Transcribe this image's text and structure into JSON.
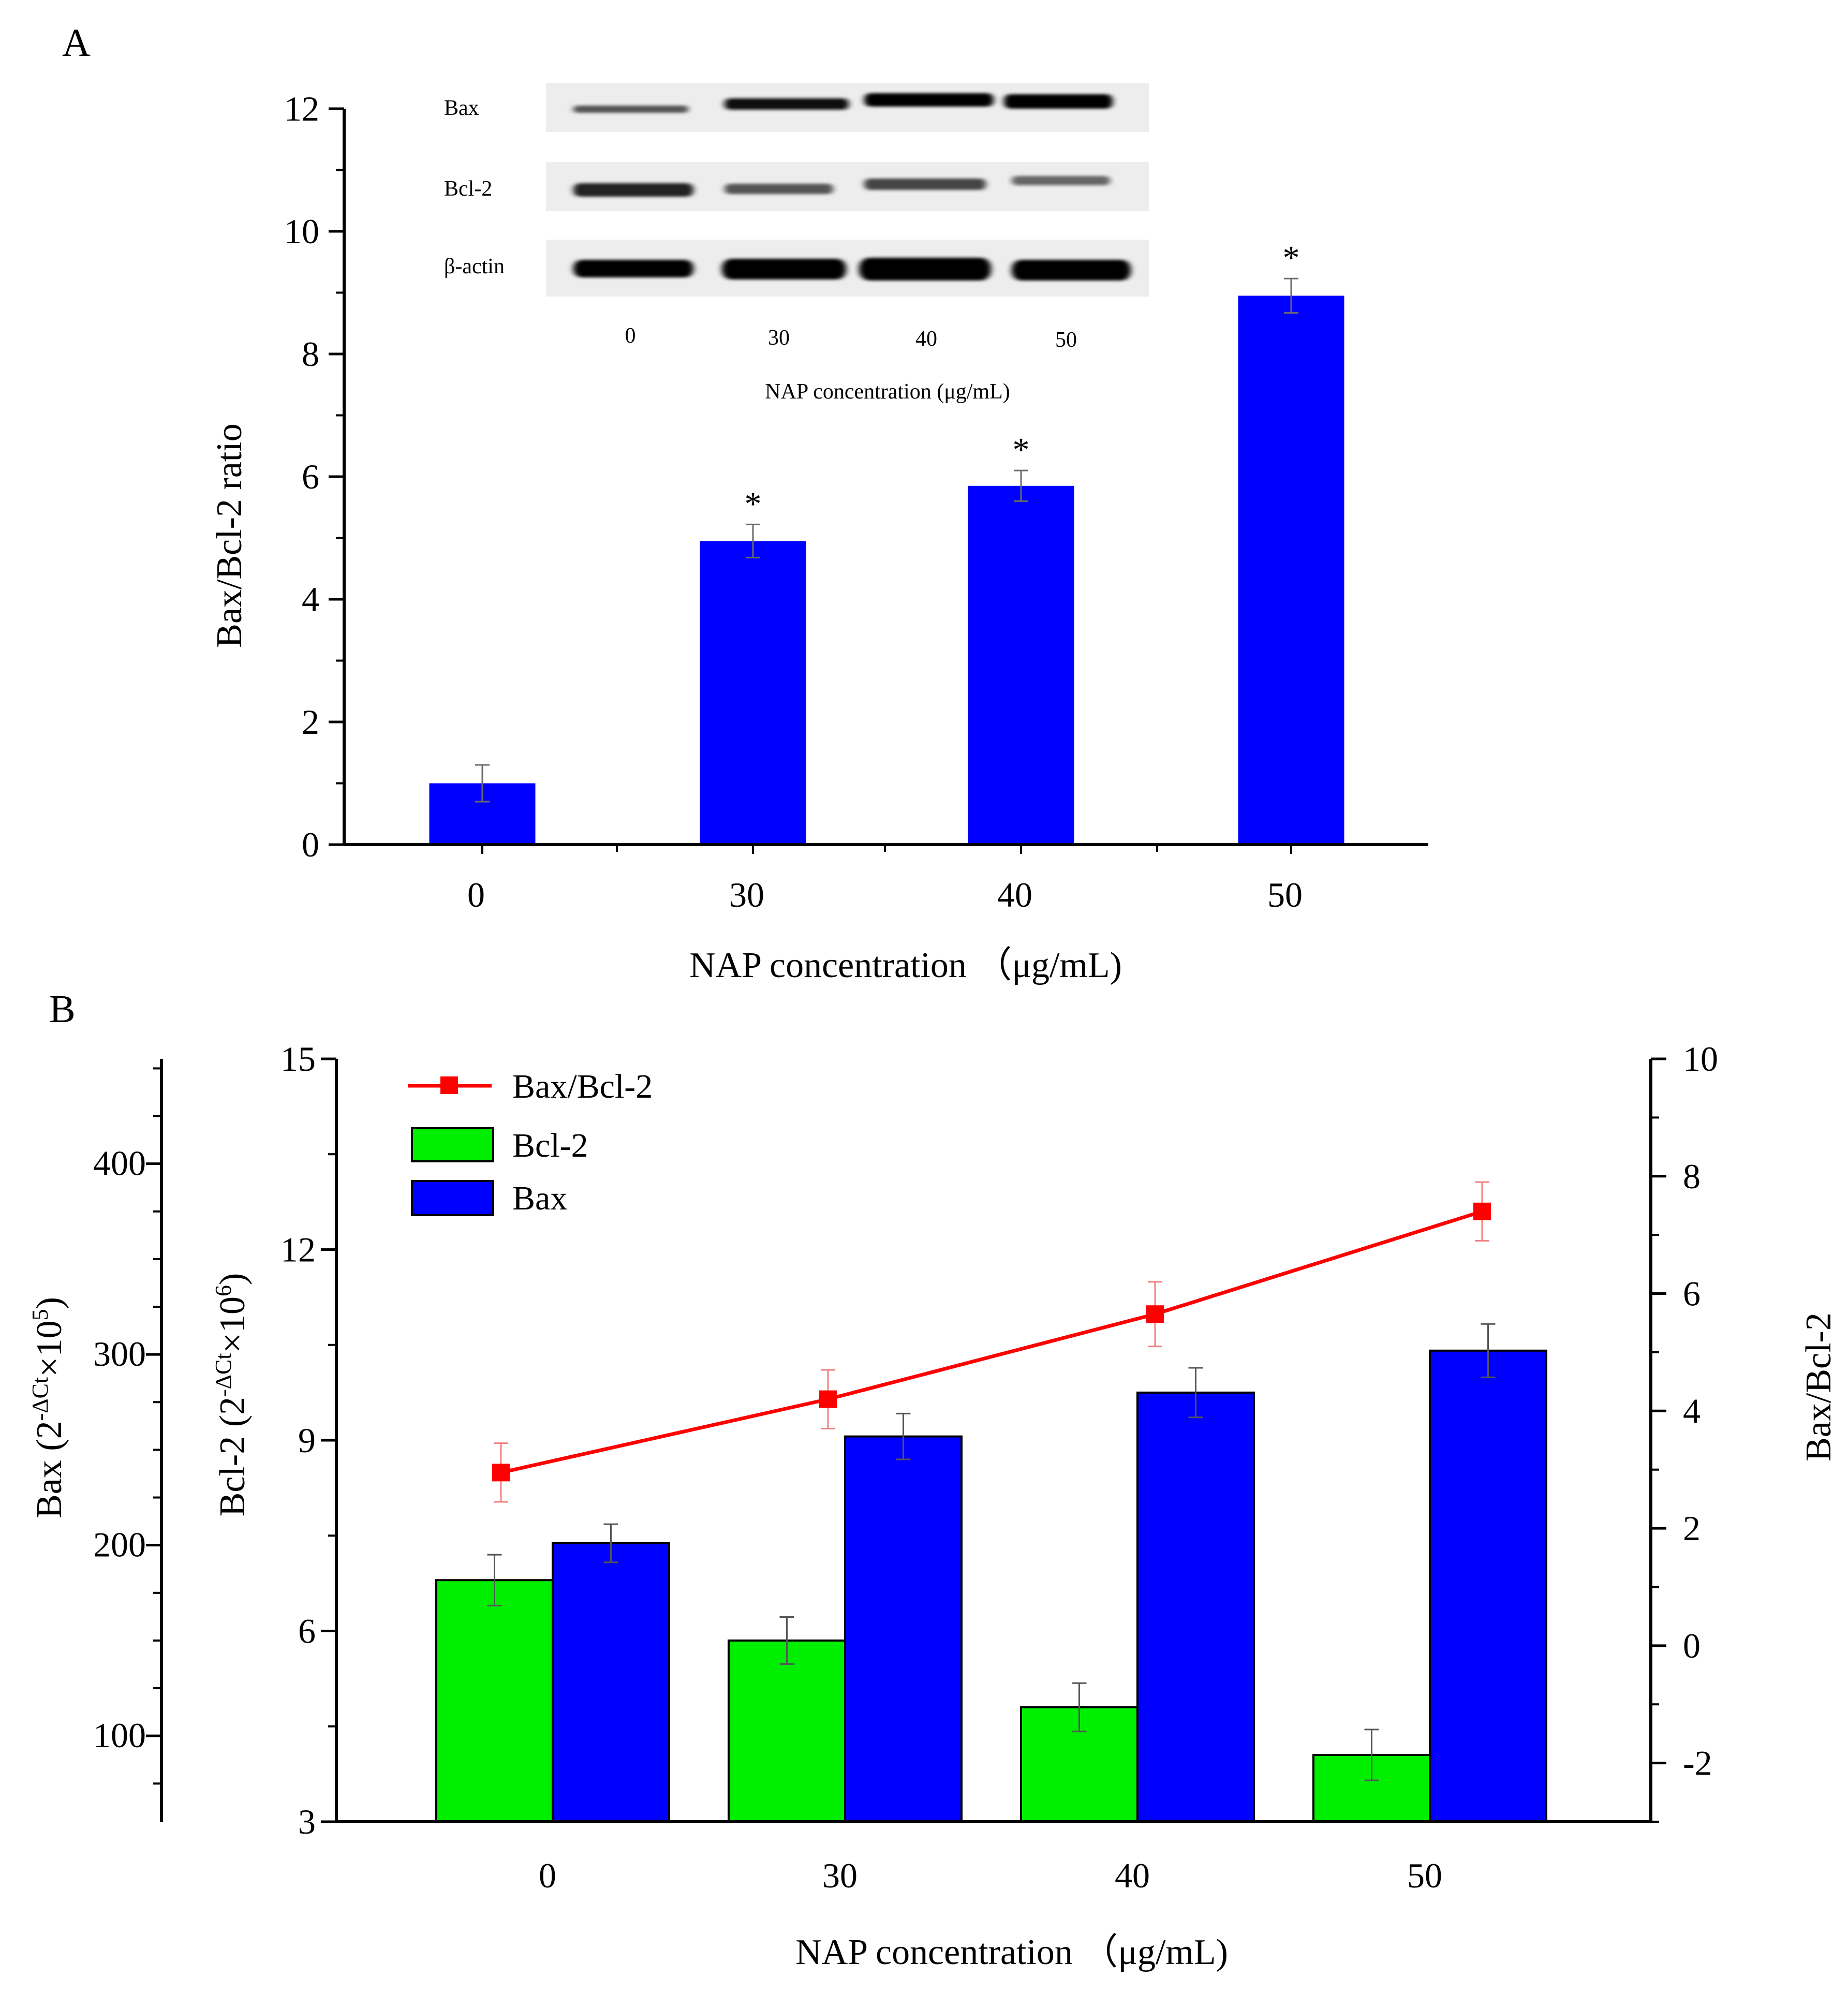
{
  "chart_data": [
    {
      "panel": "A",
      "type": "bar",
      "categories": [
        "0",
        "30",
        "40",
        "50"
      ],
      "values": [
        1.0,
        4.95,
        5.85,
        8.95
      ],
      "errors": [
        0.3,
        0.27,
        0.25,
        0.28
      ],
      "significance": [
        "",
        "*",
        "*",
        "*"
      ],
      "xlabel": "NAP concentration （μg/mL)",
      "ylabel": "Bax/Bcl-2 ratio",
      "ylim": [
        0,
        12
      ],
      "yticks": [
        "0",
        "2",
        "4",
        "6",
        "8",
        "10",
        "12"
      ],
      "bar_color": "#0000ff",
      "inset_blot": {
        "rows": [
          "Bax",
          "Bcl-2",
          "β-actin"
        ],
        "lanes": [
          "0",
          "30",
          "40",
          "50"
        ],
        "xlabel": "NAP concentration (μg/mL)"
      }
    },
    {
      "panel": "B",
      "type": "bar",
      "categories": [
        "0",
        "30",
        "40",
        "50"
      ],
      "series": [
        {
          "name": "Bcl-2",
          "axis": "left_inner",
          "color": "#00ee00",
          "values": [
            6.8,
            5.85,
            4.8,
            4.05
          ],
          "errors": [
            0.4,
            0.37,
            0.38,
            0.4
          ]
        },
        {
          "name": "Bax",
          "axis": "left_outer",
          "color": "#0000ff",
          "values": [
            201,
            257,
            280,
            302
          ],
          "errors": [
            10,
            12,
            13,
            14
          ]
        },
        {
          "name": "Bax/Bcl-2",
          "type": "line",
          "axis": "right",
          "color": "#ff0000",
          "values": [
            2.95,
            4.2,
            5.65,
            7.4
          ],
          "errors": [
            0.5,
            0.5,
            0.55,
            0.5
          ]
        }
      ],
      "legend": [
        "Bax/Bcl-2",
        "Bcl-2",
        "Bax"
      ],
      "xlabel": "NAP concentration （μg/mL)",
      "y_outer": {
        "label_main": "Bax (2",
        "label_sup": "-ΔCt",
        "label_mid": "×10",
        "label_exp": "5",
        "label_end": ")",
        "ylim": [
          55,
          455
        ],
        "ticks": [
          "100",
          "200",
          "300",
          "400"
        ]
      },
      "y_inner": {
        "label_main": "Bcl-2 (2",
        "label_sup": "-ΔCt",
        "label_mid": "×10",
        "label_exp": "6",
        "label_end": ")",
        "ylim": [
          3,
          15
        ],
        "ticks": [
          "3",
          "6",
          "9",
          "12",
          "15"
        ]
      },
      "y_right": {
        "label": "Bax/Bcl-2",
        "ylim": [
          -3,
          10
        ],
        "ticks": [
          "-2",
          "0",
          "2",
          "4",
          "6",
          "8",
          "10"
        ]
      }
    }
  ],
  "panel_labels": {
    "a": "A",
    "b": "B"
  }
}
